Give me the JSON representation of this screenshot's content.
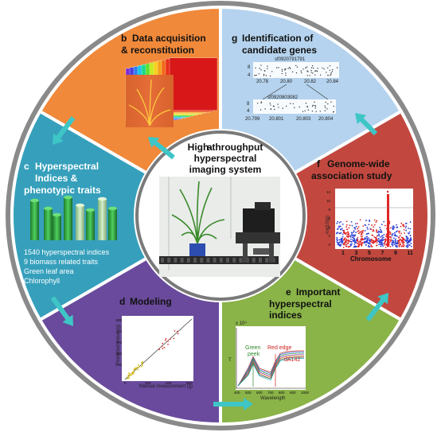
{
  "center": {
    "letter": "a",
    "lines": [
      "High-throughput",
      "hyperspectral",
      "imaging system"
    ]
  },
  "segments": {
    "b": {
      "letter": "b",
      "lines": [
        "Data acquisition",
        "& reconstitution"
      ],
      "color": "#f0893a"
    },
    "g": {
      "letter": "g",
      "lines": [
        "Identification of",
        "candidate genes"
      ],
      "color": "#b5d3ee",
      "plot1": {
        "title": "sf0920791791",
        "ticks": [
          "20.78",
          "20.80",
          "20.82",
          "20.84"
        ],
        "yticks": [
          "8",
          "4"
        ]
      },
      "plot2": {
        "title": "sf0920803082",
        "ticks": [
          "20.799",
          "20.801",
          "20.803",
          "20.804"
        ],
        "yticks": [
          "8",
          "4"
        ]
      }
    },
    "f": {
      "letter": "f",
      "lines": [
        "Genome-wide",
        "association study"
      ],
      "color": "#c2483f",
      "ylabel": "-log10(p)",
      "xlabel": "Chromosome",
      "xticks": [
        "1",
        "3",
        "5",
        "7",
        "9",
        "11"
      ],
      "yticks": [
        "12",
        "10",
        "8",
        "6",
        "4",
        "2",
        "0"
      ]
    },
    "e": {
      "letter": "e",
      "lines": [
        "Important",
        "hyperspectral",
        "indices"
      ],
      "color": "#8ab348",
      "ylabel": "T",
      "xlabel": "Wavelength",
      "xticks": [
        "400",
        "500",
        "600",
        "700",
        "800",
        "900",
        "1000"
      ],
      "exp": "x 10⁴",
      "annotations": [
        "Green",
        "peek",
        "Red edge",
        "dA142"
      ]
    },
    "d": {
      "letter": "d",
      "lines": [
        "Modeling"
      ],
      "color": "#6a4a9c",
      "ylabel": "Predicted value (g)",
      "xlabel": "Manual measurement (g)",
      "xticks": [
        "0",
        "200",
        "400",
        "600"
      ],
      "yticks": [
        "500",
        "400",
        "300",
        "200",
        "100"
      ]
    },
    "c": {
      "letter": "c",
      "lines": [
        "Hyperspectral",
        "Indices &",
        "phenotypic traits"
      ],
      "color": "#36a0bc",
      "items": [
        "1540 hyperspectral indices",
        "9 biomass related traits",
        "Green leaf area",
        "Chlorophyll"
      ]
    }
  },
  "colors": {
    "arrow": "#3ec6c6",
    "ring": "#8a8a8a",
    "border": "#ffffff"
  }
}
